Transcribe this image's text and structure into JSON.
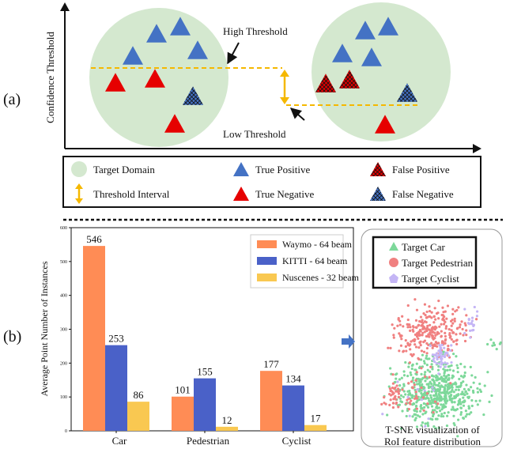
{
  "panel_a": {
    "label": "(a)",
    "y_axis_label": "Confidence  Threshold",
    "high_threshold_label": "High Threshold",
    "low_threshold_label": "Low Threshold",
    "legend": [
      {
        "icon": "green-circle",
        "label": "Target Domain"
      },
      {
        "icon": "blue-triangle",
        "label": "True Positive"
      },
      {
        "icon": "red-hatched-triangle",
        "label": "False Positive"
      },
      {
        "icon": "yellow-double-arrow",
        "label": "Threshold Interval"
      },
      {
        "icon": "red-triangle",
        "label": "True Negative"
      },
      {
        "icon": "blue-hatched-triangle",
        "label": "False Negative"
      }
    ],
    "colors": {
      "domain": "#d4e8cf",
      "blue": "#4472c4",
      "red": "#e60000",
      "threshold": "#f5b800"
    }
  },
  "panel_b": {
    "label": "(b)",
    "tsne": {
      "legend": [
        {
          "label": "Target Car",
          "color": "#7dd89a",
          "marker": "triangle"
        },
        {
          "label": "Target Pedestrian",
          "color": "#f08080",
          "marker": "circle"
        },
        {
          "label": "Target  Cyclist",
          "color": "#c4b5f5",
          "marker": "pentagon"
        }
      ],
      "caption_line1": "T-SNE visualization of",
      "caption_line2": "RoI feature distribution"
    }
  },
  "chart_data": {
    "type": "bar",
    "categories": [
      "Car",
      "Pedestrian",
      "Cyclist"
    ],
    "series": [
      {
        "name": "Waymo - 64 beam",
        "color": "#ff8c55",
        "values": [
          546,
          101,
          177
        ]
      },
      {
        "name": "KITTI - 64 beam",
        "color": "#4a61c8",
        "values": [
          253,
          155,
          134
        ]
      },
      {
        "name": "Nuscenes - 32 beam",
        "color": "#f9c851",
        "values": [
          86,
          12,
          17
        ]
      }
    ],
    "ylabel": "Average Point Number of Instances",
    "xlabel": "",
    "ylim": [
      0,
      600
    ],
    "yticks": [
      0,
      100,
      200,
      300,
      400,
      500,
      600
    ],
    "legend_position": "top-right"
  }
}
